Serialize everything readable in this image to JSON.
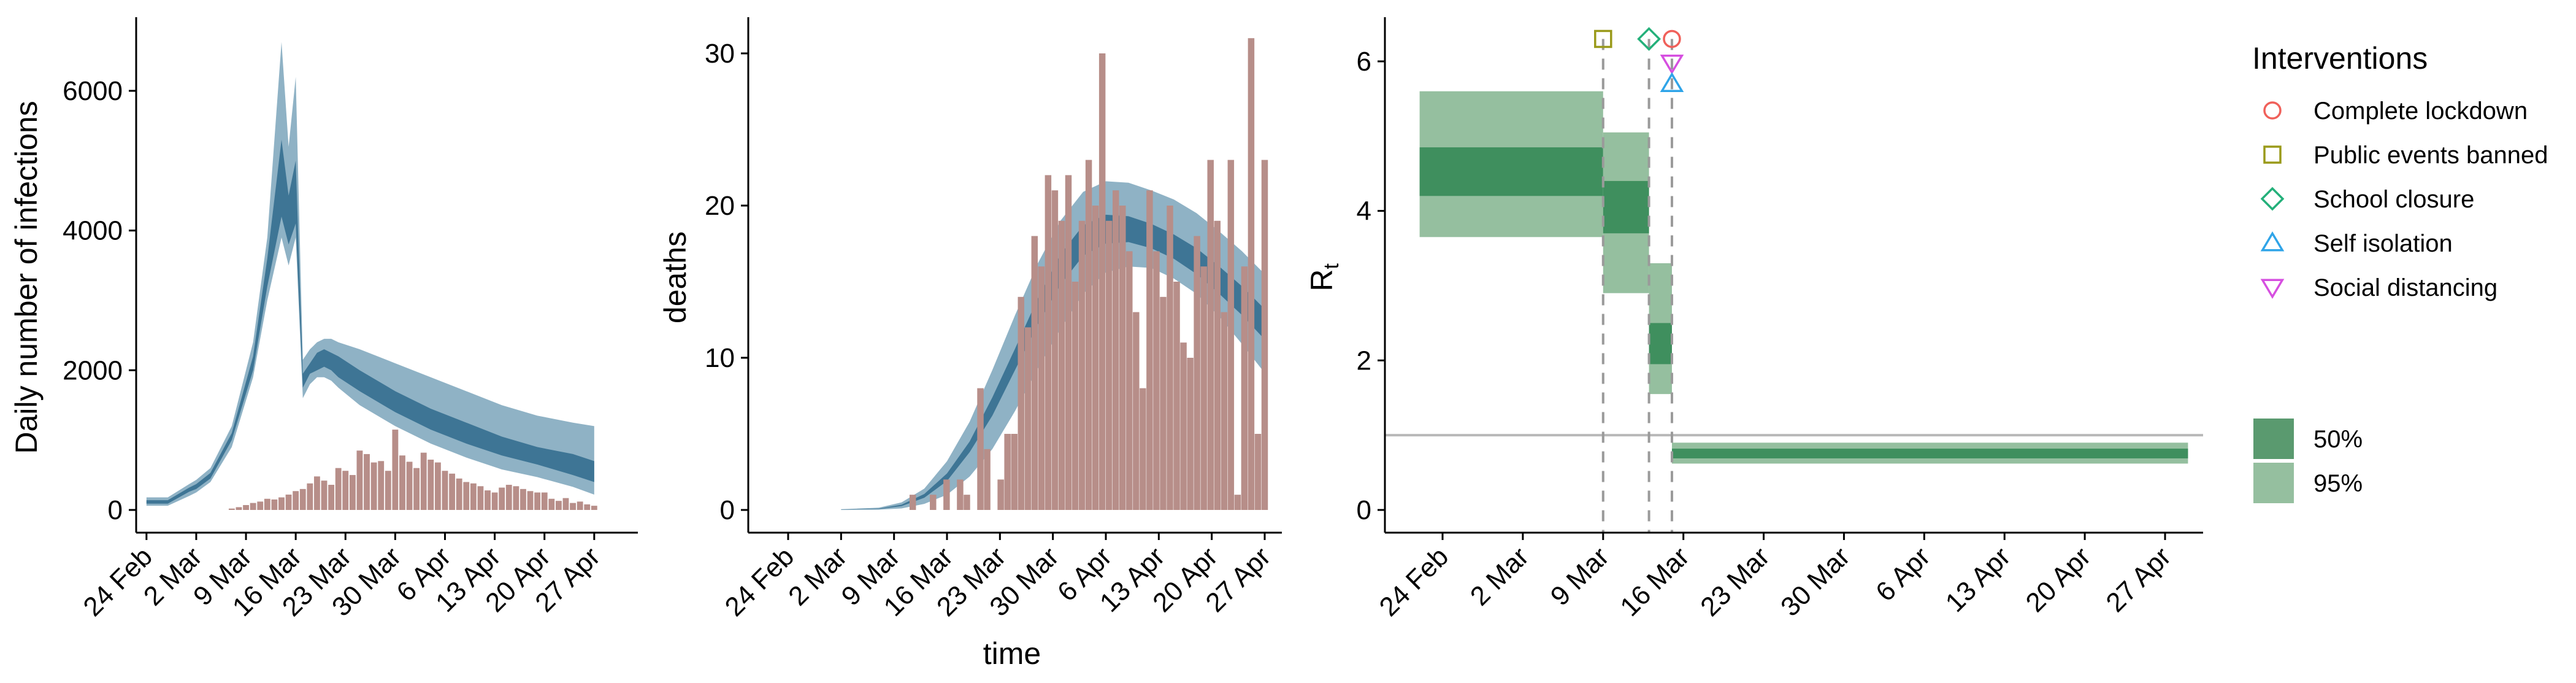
{
  "chart_data": [
    {
      "type": "area",
      "ylabel": "Daily number of infections",
      "xlabel": "",
      "x_ticks": [
        "24 Feb",
        "2 Mar",
        "9 Mar",
        "16 Mar",
        "23 Mar",
        "30 Mar",
        "6 Apr",
        "13 Apr",
        "20 Apr",
        "27 Apr"
      ],
      "y_ticks": [
        "0",
        "2000",
        "4000",
        "6000"
      ],
      "ylim": [
        0,
        7000
      ],
      "band_colors": {
        "ci95": "#8fb2c5",
        "ci50": "#3e7595",
        "bars": "#b78e89"
      },
      "x": [
        0,
        3,
        6,
        7,
        9,
        12,
        15,
        17,
        19,
        20,
        21,
        22,
        23,
        24,
        25,
        26,
        27,
        30,
        35,
        40,
        45,
        50,
        55,
        60,
        63
      ],
      "ci95_low": [
        60,
        60,
        200,
        250,
        400,
        900,
        1900,
        3000,
        3900,
        3500,
        3900,
        1600,
        1800,
        1900,
        1900,
        1850,
        1750,
        1500,
        1200,
        950,
        750,
        580,
        470,
        330,
        220
      ],
      "ci95_high": [
        180,
        180,
        370,
        430,
        600,
        1200,
        2400,
        3900,
        6700,
        5200,
        6200,
        2150,
        2300,
        2400,
        2450,
        2450,
        2400,
        2300,
        2100,
        1900,
        1700,
        1500,
        1350,
        1250,
        1200
      ],
      "ci50_low": [
        90,
        90,
        260,
        300,
        450,
        1000,
        2000,
        3200,
        4200,
        3800,
        4100,
        1750,
        1950,
        2000,
        2050,
        2000,
        1900,
        1700,
        1400,
        1150,
        950,
        780,
        650,
        500,
        400
      ],
      "ci50_high": [
        140,
        140,
        320,
        370,
        530,
        1100,
        2200,
        3600,
        5300,
        4500,
        5000,
        1950,
        2100,
        2250,
        2300,
        2250,
        2200,
        2000,
        1700,
        1450,
        1250,
        1050,
        900,
        800,
        700
      ],
      "bars_start": 12,
      "bar_values": [
        20,
        40,
        70,
        100,
        120,
        160,
        150,
        180,
        220,
        270,
        300,
        380,
        480,
        420,
        360,
        600,
        560,
        500,
        850,
        800,
        680,
        700,
        560,
        1150,
        780,
        690,
        600,
        820,
        720,
        680,
        560,
        520,
        450,
        400,
        380,
        340,
        280,
        250,
        320,
        360,
        340,
        300,
        270,
        250,
        250,
        160,
        130,
        170,
        100,
        120,
        80,
        60
      ]
    },
    {
      "type": "area",
      "ylabel": "deaths",
      "xlabel": "time",
      "x_ticks": [
        "24 Feb",
        "2 Mar",
        "9 Mar",
        "16 Mar",
        "23 Mar",
        "30 Mar",
        "6 Apr",
        "13 Apr",
        "20 Apr",
        "27 Apr"
      ],
      "y_ticks": [
        "0",
        "10",
        "20",
        "30"
      ],
      "ylim": [
        0,
        32.5
      ],
      "band_colors": {
        "ci95": "#8fb2c5",
        "ci50": "#3e7595",
        "bars": "#b78e89"
      },
      "x": [
        7,
        12,
        15,
        18,
        21,
        24,
        27,
        30,
        33,
        36,
        39,
        42,
        45,
        48,
        51,
        54,
        57,
        60,
        63
      ],
      "ci95_low": [
        0,
        0.02,
        0.1,
        0.4,
        1.0,
        2.2,
        4.0,
        6.5,
        9.3,
        11.9,
        14.2,
        15.6,
        16.0,
        15.9,
        15.2,
        14.2,
        12.7,
        10.9,
        9.0
      ],
      "ci95_high": [
        0.05,
        0.15,
        0.5,
        1.4,
        3.2,
        5.8,
        9.2,
        12.8,
        16.2,
        19.0,
        20.9,
        21.6,
        21.5,
        21.0,
        20.4,
        19.5,
        18.3,
        17.0,
        15.5
      ],
      "ci50_low": [
        0.02,
        0.06,
        0.25,
        0.8,
        1.9,
        3.8,
        6.2,
        9.2,
        12.2,
        14.8,
        16.7,
        17.5,
        17.6,
        17.2,
        16.5,
        15.5,
        14.2,
        12.8,
        11.2
      ],
      "ci50_high": [
        0.03,
        0.09,
        0.35,
        1.05,
        2.4,
        4.5,
        7.4,
        10.6,
        13.9,
        16.8,
        18.7,
        19.4,
        19.3,
        18.8,
        18.1,
        17.2,
        16.0,
        14.7,
        13.2
      ]
    },
    {
      "type": "bar",
      "ylabel": "R",
      "ylabel_sub": "t",
      "xlabel": "",
      "x_ticks": [
        "24 Feb",
        "2 Mar",
        "9 Mar",
        "16 Mar",
        "23 Mar",
        "30 Mar",
        "6 Apr",
        "13 Apr",
        "20 Apr",
        "27 Apr"
      ],
      "y_ticks": [
        "0",
        "2",
        "4",
        "6"
      ],
      "ylim": [
        0,
        6.6
      ],
      "reference_line": 1,
      "segments": [
        {
          "start": -2,
          "end": 14,
          "ci95": [
            3.65,
            5.6
          ],
          "ci50": [
            4.2,
            4.85
          ]
        },
        {
          "start": 14,
          "end": 18,
          "ci95": [
            2.9,
            5.05
          ],
          "ci50": [
            3.7,
            4.4
          ]
        },
        {
          "start": 18,
          "end": 20,
          "ci95": [
            1.55,
            3.3
          ],
          "ci50": [
            1.95,
            2.5
          ]
        },
        {
          "start": 20,
          "end": 65,
          "ci95": [
            0.62,
            0.9
          ],
          "ci50": [
            0.69,
            0.82
          ]
        }
      ],
      "intervention_lines": [
        14,
        18,
        20
      ],
      "interventions_plotted": [
        {
          "type": "Public events banned",
          "day": 14,
          "y": 6.3
        },
        {
          "type": "School closure",
          "day": 18,
          "y": 6.3
        },
        {
          "type": "Complete lockdown",
          "day": 20,
          "y": 6.3
        },
        {
          "type": "Social distancing",
          "day": 20,
          "y": 5.98
        },
        {
          "type": "Self isolation",
          "day": 20,
          "y": 5.7
        }
      ],
      "colors": {
        "ci50": "#3f8f5e",
        "ci95": "#95bf9f",
        "lines": "#9a9a9a"
      }
    }
  ],
  "legend": {
    "title": "Interventions",
    "items": [
      {
        "label": "Complete lockdown",
        "shape": "circle",
        "color": "#f0605a"
      },
      {
        "label": "Public events banned",
        "shape": "square",
        "color": "#9a9a1a"
      },
      {
        "label": "School closure",
        "shape": "diamond",
        "color": "#24b07a"
      },
      {
        "label": "Self isolation",
        "shape": "triangle-up",
        "color": "#2fa4e8"
      },
      {
        "label": "Social distancing",
        "shape": "triangle-down",
        "color": "#d64fe0"
      }
    ],
    "ci_items": [
      {
        "label": "50%",
        "color": "#5a9a6f"
      },
      {
        "label": "95%",
        "color": "#95bf9f"
      }
    ]
  }
}
